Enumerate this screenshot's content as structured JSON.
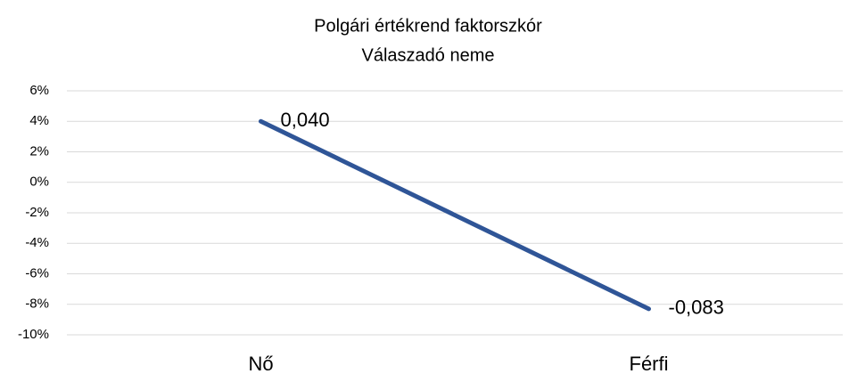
{
  "chart_data": {
    "type": "line",
    "title": [
      "Polgári értékrend faktorszkór",
      "Válaszadó neme"
    ],
    "categories": [
      "Nő",
      "Férfi"
    ],
    "series": [
      {
        "name": "Válaszadó neme",
        "color": "#2f5597",
        "values": [
          4,
          -8.3
        ],
        "value_labels": [
          "0,040",
          "-0,083"
        ]
      }
    ],
    "ylim": [
      -10,
      6
    ],
    "yticks": [
      {
        "value": 6,
        "label": "6%"
      },
      {
        "value": 4,
        "label": "4%"
      },
      {
        "value": 2,
        "label": "2%"
      },
      {
        "value": 0,
        "label": "0%"
      },
      {
        "value": -2,
        "label": "-2%"
      },
      {
        "value": -4,
        "label": "-4%"
      },
      {
        "value": -6,
        "label": "-6%"
      },
      {
        "value": -8,
        "label": "-8%"
      },
      {
        "value": -10,
        "label": "-10%"
      }
    ],
    "grid": true
  }
}
